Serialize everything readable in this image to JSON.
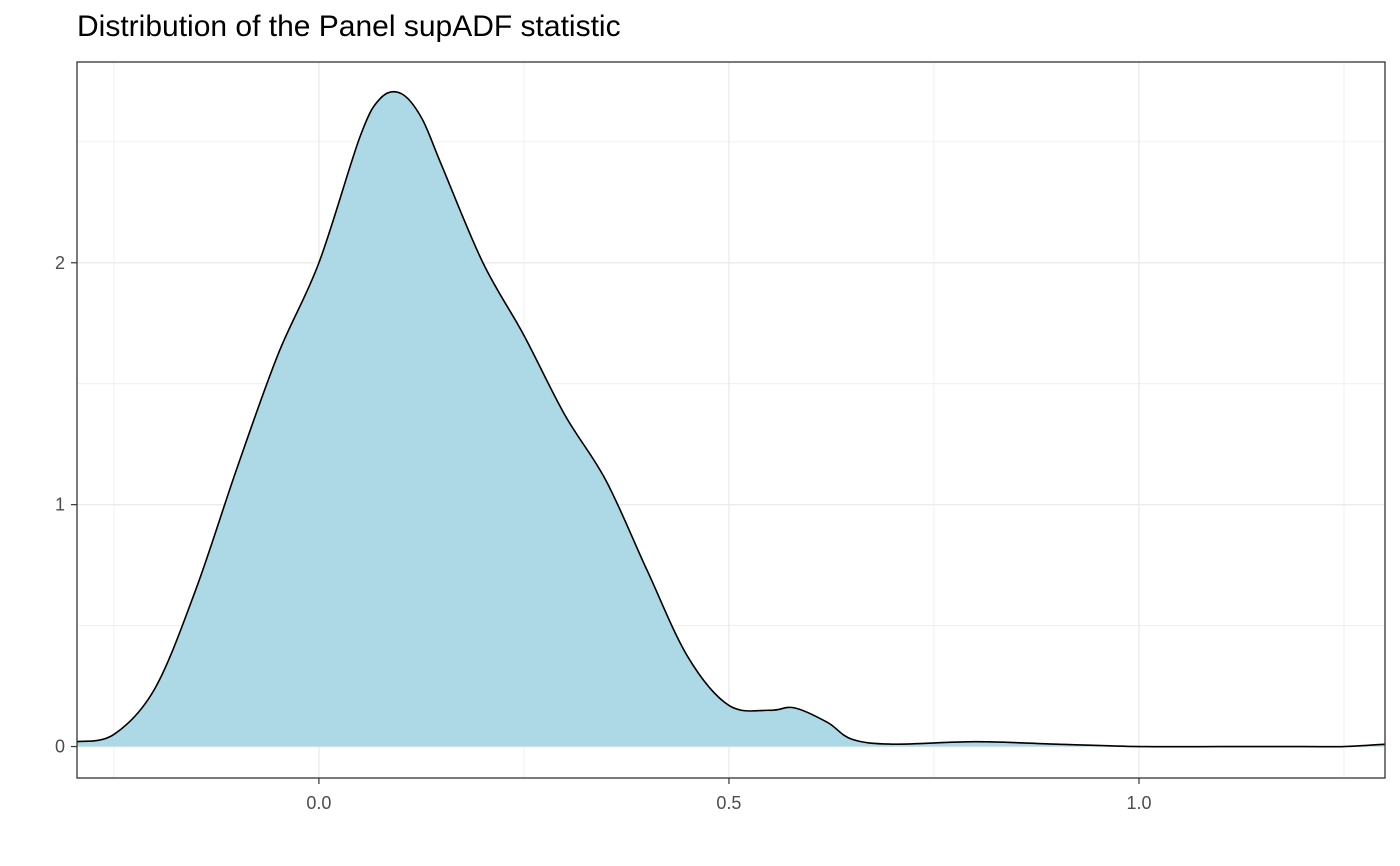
{
  "chart_data": {
    "type": "area",
    "title": "Distribution of the Panel supADF statistic",
    "xlabel": "",
    "ylabel": "",
    "xlim": [
      -0.295,
      1.3
    ],
    "ylim": [
      -0.13,
      2.83
    ],
    "x_ticks": [
      {
        "value": 0.0,
        "label": "0.0"
      },
      {
        "value": 0.5,
        "label": "0.5"
      },
      {
        "value": 1.0,
        "label": "1.0"
      }
    ],
    "y_ticks": [
      {
        "value": 0,
        "label": "0"
      },
      {
        "value": 1,
        "label": "1"
      },
      {
        "value": 2,
        "label": "2"
      }
    ],
    "x_minor_grid": [
      -0.25,
      0.25,
      0.75,
      1.25
    ],
    "y_minor_grid": [
      0.5,
      1.5,
      2.5
    ],
    "grid": true,
    "fill_color": "#add8e6",
    "line_color": "#000000",
    "series": [
      {
        "x": [
          -0.295,
          -0.25,
          -0.2,
          -0.15,
          -0.1,
          -0.05,
          0.0,
          0.05,
          0.075,
          0.1,
          0.125,
          0.15,
          0.2,
          0.25,
          0.3,
          0.35,
          0.4,
          0.45,
          0.5,
          0.55,
          0.58,
          0.62,
          0.65,
          0.7,
          0.8,
          0.9,
          1.0,
          1.1,
          1.2,
          1.25,
          1.3
        ],
        "y": [
          0.02,
          0.05,
          0.24,
          0.65,
          1.15,
          1.62,
          2.0,
          2.52,
          2.68,
          2.7,
          2.6,
          2.4,
          2.0,
          1.7,
          1.37,
          1.1,
          0.73,
          0.37,
          0.17,
          0.15,
          0.16,
          0.1,
          0.03,
          0.01,
          0.02,
          0.01,
          0.0,
          0.0,
          0.0,
          0.0,
          0.01
        ]
      }
    ]
  }
}
